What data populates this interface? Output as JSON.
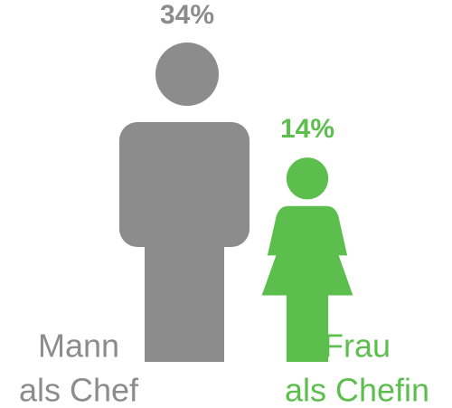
{
  "chart_data": {
    "type": "pictogram",
    "categories": [
      [
        "Mann",
        "als Chef"
      ],
      [
        "Frau",
        "als Chefin"
      ]
    ],
    "values": [
      34,
      14
    ],
    "value_labels": [
      "34%",
      "14%"
    ],
    "colors": [
      "#8c8c8c",
      "#5cbf4d"
    ]
  }
}
